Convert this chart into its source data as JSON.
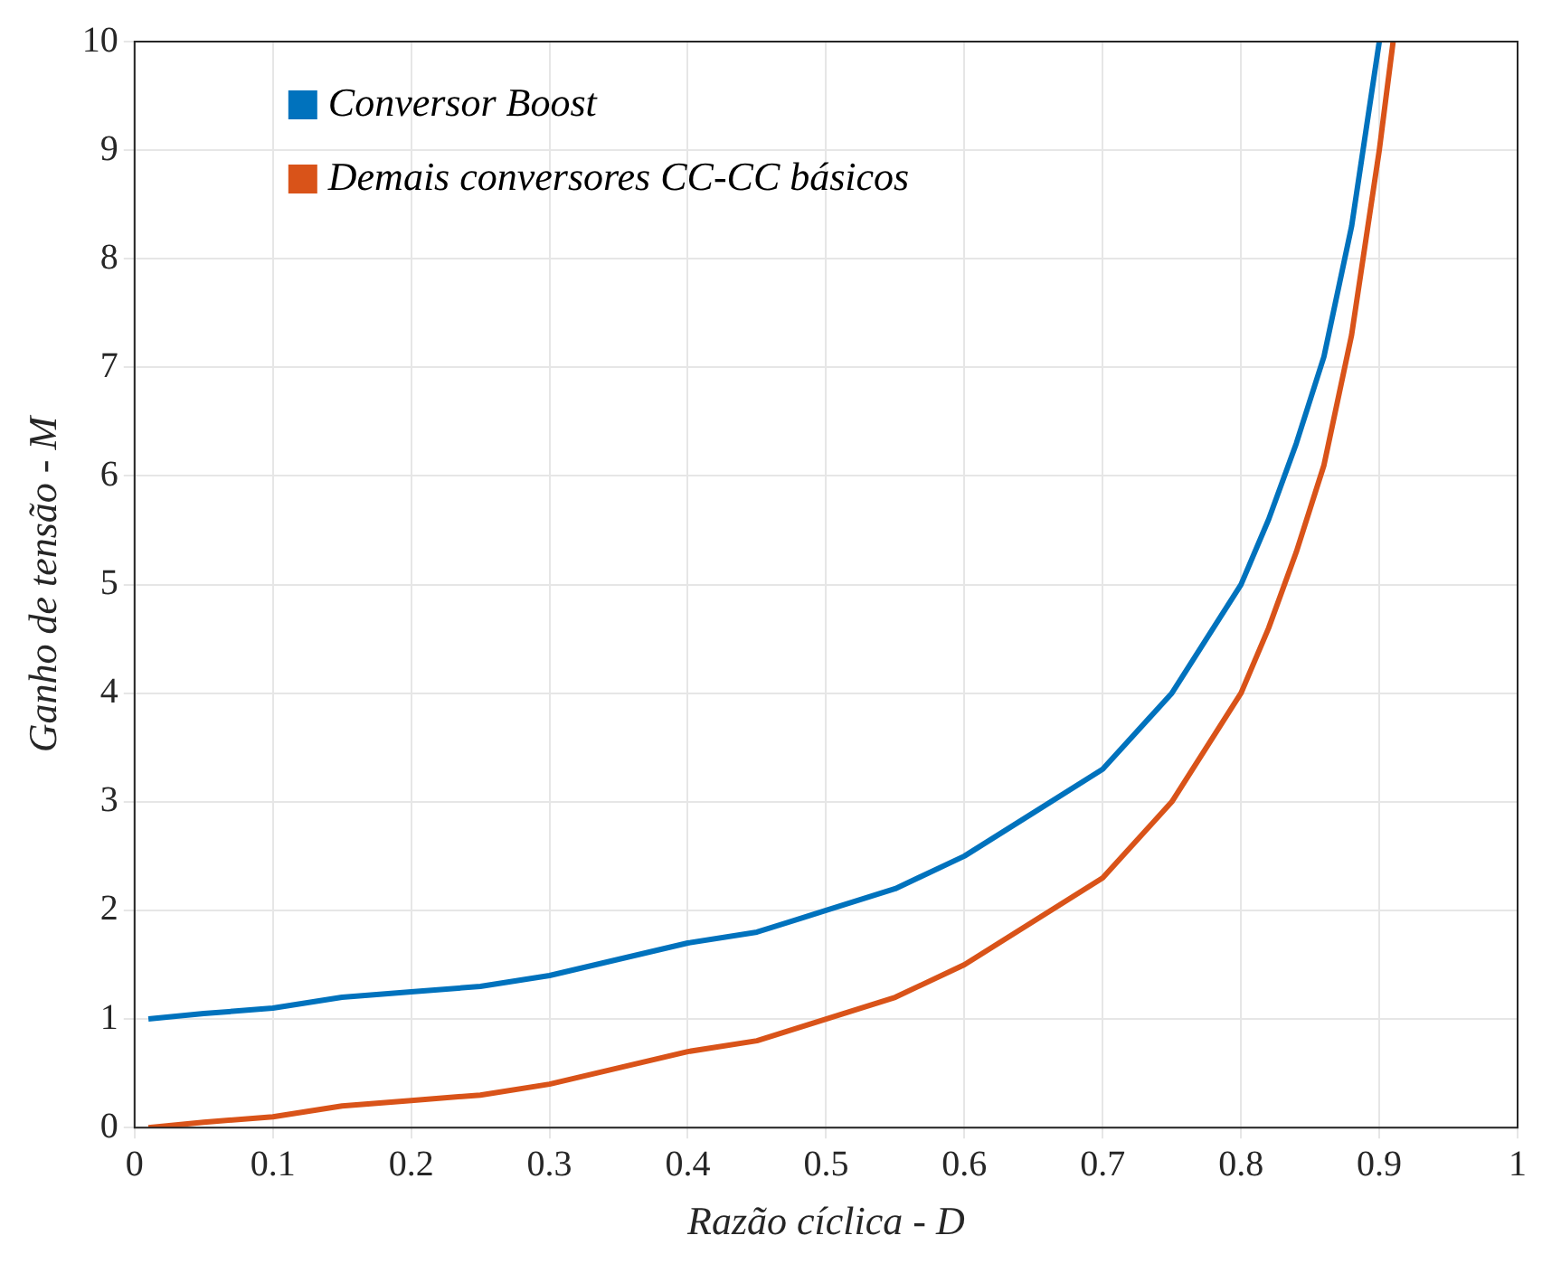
{
  "chart_data": {
    "type": "line",
    "xlabel": "Razão cíclica - D",
    "ylabel": "Ganho de tensão - M",
    "xlim": [
      0,
      1
    ],
    "xticks": [
      0,
      0.1,
      0.2,
      0.3,
      0.4,
      0.5,
      0.6,
      0.7,
      0.8,
      0.9,
      1
    ],
    "ylim": [
      0,
      10
    ],
    "yticks": [
      0,
      1,
      2,
      3,
      4,
      5,
      6,
      7,
      8,
      9,
      10
    ],
    "grid": true,
    "legend": "top left",
    "marker": "none",
    "line_style": "solid",
    "series": [
      {
        "name": "Conversor Boost",
        "color": "#0072bd",
        "x": [
          0.01,
          0.05,
          0.1,
          0.15,
          0.2,
          0.25,
          0.3,
          0.35,
          0.4,
          0.45,
          0.5,
          0.55,
          0.6,
          0.65,
          0.7,
          0.75,
          0.8,
          0.82,
          0.84,
          0.86,
          0.88,
          0.9
        ],
        "values": [
          1.0,
          1.05,
          1.1,
          1.2,
          1.25,
          1.3,
          1.4,
          1.55,
          1.7,
          1.8,
          2.0,
          2.2,
          2.5,
          2.9,
          3.3,
          4.0,
          5.0,
          5.6,
          6.3,
          7.1,
          8.3,
          10
        ]
      },
      {
        "name": "Demais conversores CC-CC básicos",
        "color": "#d95319",
        "x": [
          0.01,
          0.05,
          0.1,
          0.15,
          0.2,
          0.25,
          0.3,
          0.35,
          0.4,
          0.45,
          0.5,
          0.55,
          0.6,
          0.65,
          0.7,
          0.75,
          0.8,
          0.82,
          0.84,
          0.86,
          0.88,
          0.9,
          0.91
        ],
        "values": [
          0.0,
          0.05,
          0.1,
          0.2,
          0.25,
          0.3,
          0.4,
          0.55,
          0.7,
          0.8,
          1.0,
          1.2,
          1.5,
          1.9,
          2.3,
          3.0,
          4.0,
          4.6,
          5.3,
          6.1,
          7.3,
          9.0,
          10
        ]
      }
    ]
  }
}
